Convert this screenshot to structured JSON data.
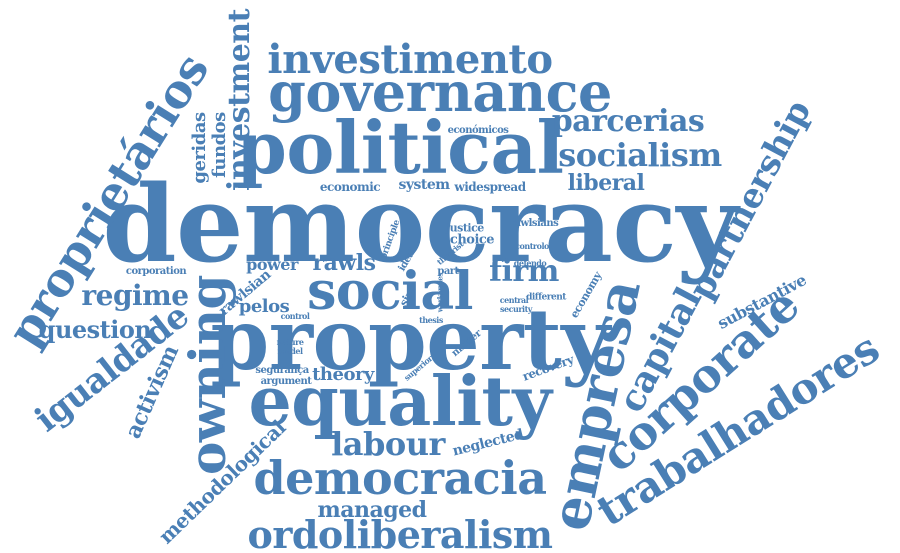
{
  "color": "#4a7fb5",
  "words": [
    "democracy",
    "property",
    "political",
    "equality",
    "governance",
    "social",
    "owning",
    "empresa",
    "proprietários",
    "corporate",
    "trabalhadores",
    "democracia",
    "investimento",
    "ordoliberalism",
    "capital",
    "partnership",
    "socialism",
    "parcerias",
    "igualdade",
    "labour",
    "firm",
    "investment",
    "regime",
    "question",
    "liberal",
    "rawls",
    "activism",
    "methodological",
    "managed",
    "theory",
    "fundos",
    "geridas",
    "pelos",
    "rawlsian",
    "power",
    "substantive",
    "neglected",
    "economic",
    "system",
    "widespread",
    "económicos",
    "justice",
    "choice",
    "corporation",
    "recovery",
    "economy",
    "segurança",
    "argument",
    "matter",
    "size",
    "ideal",
    "part",
    "principle",
    "rawlsians",
    "controlo",
    "defendo",
    "central",
    "different",
    "security",
    "control",
    "nature",
    "model",
    "superior",
    "thesis",
    "theorist",
    "worker",
    "rules"
  ]
}
